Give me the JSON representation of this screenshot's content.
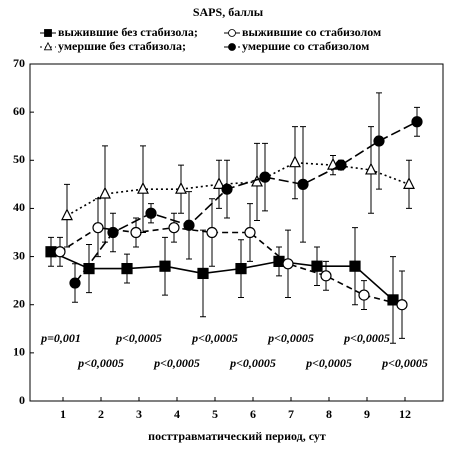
{
  "chart_data": {
    "type": "errorbar-line",
    "title": "SAPS, баллы",
    "x_label": "посттравматический период, сут",
    "categories": [
      "1",
      "2",
      "3",
      "4",
      "5",
      "6",
      "7",
      "8",
      "9",
      "12"
    ],
    "ylim": [
      0,
      70
    ],
    "yticks": [
      0,
      10,
      20,
      30,
      40,
      50,
      60,
      70
    ],
    "grid": false,
    "series": [
      {
        "name": "выжившие без стабизола;",
        "color": "#000000",
        "line_style": "solid",
        "marker": "square",
        "values": [
          31,
          27.5,
          27.5,
          28,
          26.5,
          27.5,
          29,
          28,
          28,
          21
        ],
        "errors": [
          3,
          5,
          3,
          6,
          9,
          6,
          3,
          4,
          8,
          9
        ]
      },
      {
        "name": "выжившие со стабизолом",
        "color": "#000000",
        "line_style": "dashed",
        "marker": "circle-open",
        "values": [
          31,
          36,
          35,
          36,
          35,
          35,
          28.5,
          26,
          22,
          20
        ],
        "errors": [
          3,
          6,
          3,
          3,
          7,
          6,
          7,
          3,
          3,
          7
        ]
      },
      {
        "name": "умершие без стабизола;",
        "color": "#000000",
        "line_style": "dotted",
        "marker": "triangle-open",
        "values": [
          38.5,
          43,
          44,
          44,
          45,
          45.5,
          49.5,
          49,
          48,
          45
        ],
        "errors": [
          6.5,
          10,
          9,
          5,
          5,
          8,
          7.5,
          2,
          9,
          5
        ]
      },
      {
        "name": "умершие со стабизолом",
        "color": "#000000",
        "line_style": "dashdot",
        "marker": "circle",
        "values": [
          24.5,
          35,
          39,
          36.5,
          44,
          46.5,
          45,
          49,
          54,
          58
        ],
        "errors": [
          4,
          4,
          2,
          7,
          6,
          7,
          12,
          1,
          10,
          3
        ]
      }
    ],
    "annotations": [
      "p=0,001",
      "p<0,0005",
      "p<0,0005",
      "p<0,0005",
      "p<0,0005",
      "p<0,0005",
      "p<0,0005",
      "p<0,0005",
      "p<0,0005",
      "p<0,0005"
    ]
  }
}
